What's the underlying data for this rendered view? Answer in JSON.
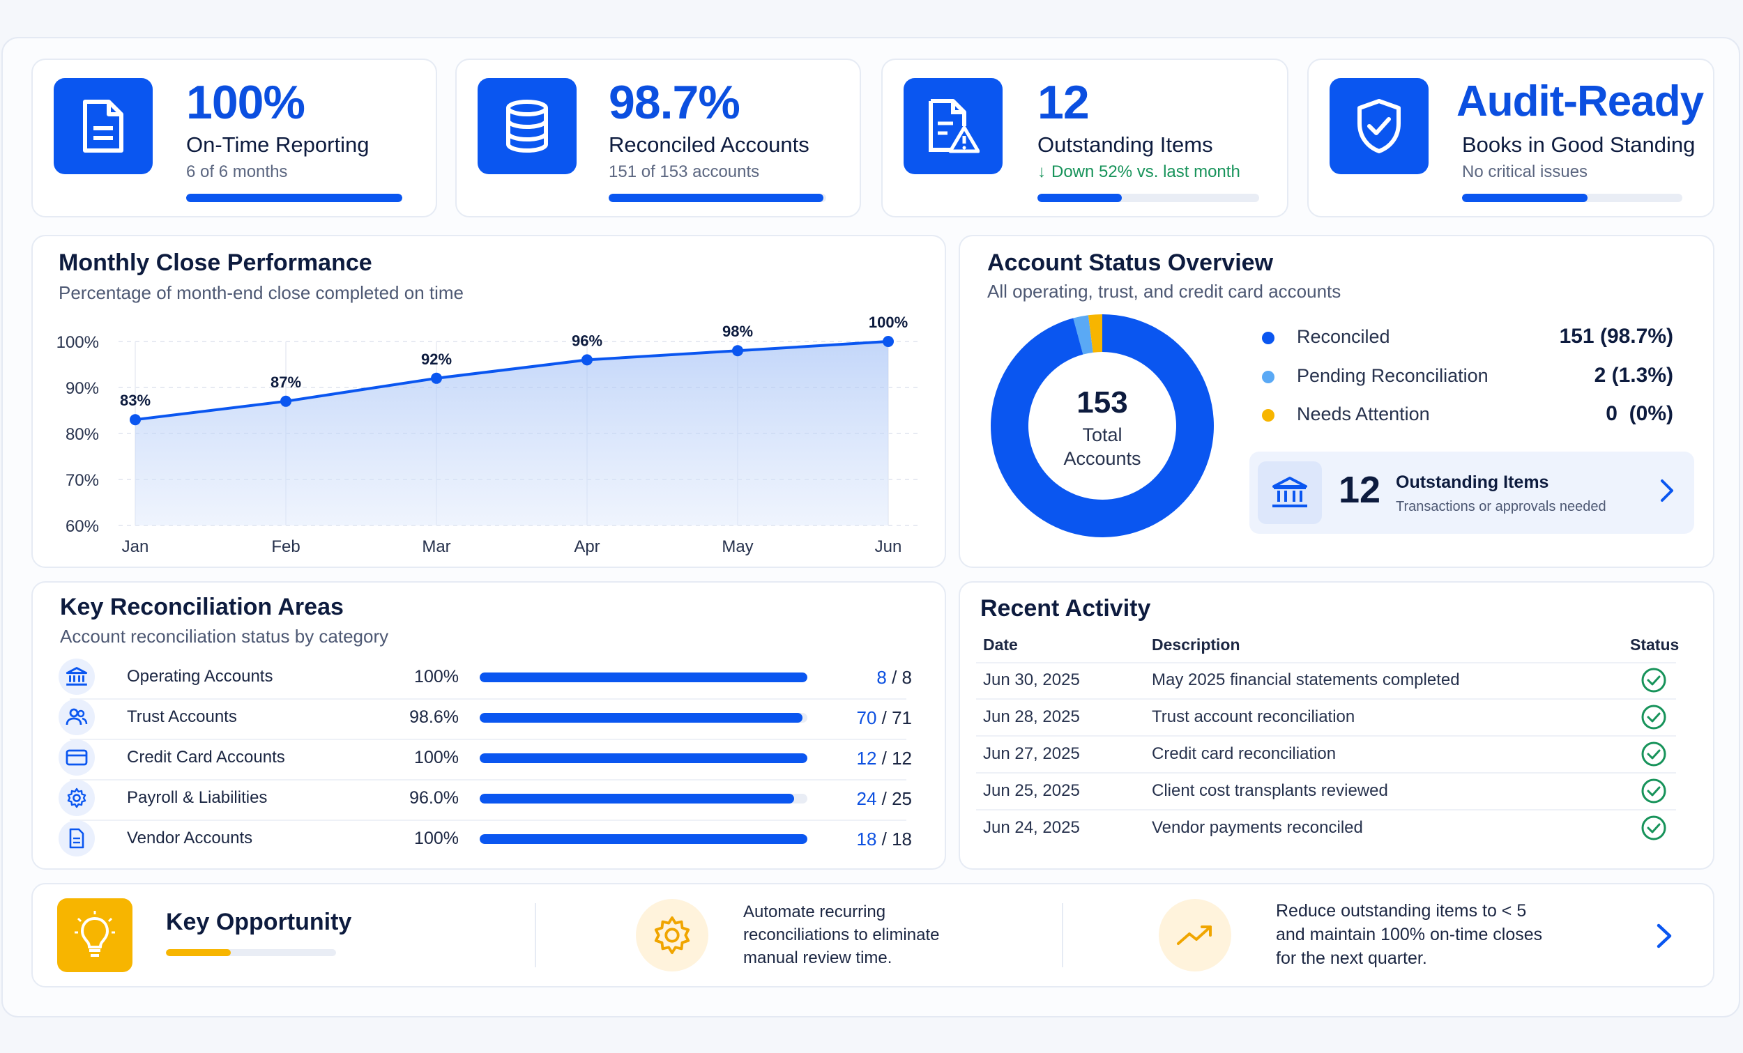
{
  "kpis": [
    {
      "value": "100%",
      "label": "On-Time Reporting",
      "sub": "6 of 6 months",
      "progress": 1.0,
      "icon": "document-icon"
    },
    {
      "value": "98.7%",
      "label": "Reconciled Accounts",
      "sub": "151 of 153 accounts",
      "progress": 0.987,
      "icon": "database-icon"
    },
    {
      "value": "12",
      "label": "Outstanding Items",
      "sub": "Down 52% vs. last month",
      "trend_arrow": "↓",
      "progress": 0.38,
      "icon": "document-warning-icon"
    },
    {
      "value": "Audit-Ready",
      "label": "Books in Good Standing",
      "sub": "No critical issues",
      "progress": 0.57,
      "icon": "shield-check-icon"
    }
  ],
  "monthly_close": {
    "title": "Monthly Close Performance",
    "subtitle": "Percentage of month-end close completed on time"
  },
  "chart_data": {
    "type": "area",
    "categories": [
      "Jan",
      "Feb",
      "Mar",
      "Apr",
      "May",
      "Jun"
    ],
    "values": [
      83,
      87,
      92,
      96,
      98,
      100
    ],
    "value_labels": [
      "83%",
      "87%",
      "92%",
      "96%",
      "98%",
      "100%"
    ],
    "y_ticks": [
      "100%",
      "90%",
      "80%",
      "70%",
      "60%"
    ],
    "ylim": [
      60,
      100
    ],
    "grid": true,
    "color": "#0a56f0"
  },
  "account_status": {
    "title": "Account Status Overview",
    "subtitle": "All operating, trust, and credit card accounts",
    "donut_total": "153",
    "donut_label_1": "Total",
    "donut_label_2": "Accounts",
    "legend": [
      {
        "label": "Reconciled",
        "value": "151 (98.7%)",
        "color": "#0a56f0"
      },
      {
        "label": "Pending Reconciliation",
        "value": "2 (1.3%)",
        "color": "#5aa9f5"
      },
      {
        "label": "Needs Attention",
        "value": "0  (0%)",
        "color": "#f7b500"
      }
    ],
    "donut_slices": [
      151,
      2,
      0
    ],
    "outstanding": {
      "count": "12",
      "title": "Outstanding Items",
      "desc": "Transactions or approvals needed"
    }
  },
  "key_reconciliation": {
    "title": "Key Reconciliation Areas",
    "subtitle": "Account reconciliation status by category",
    "rows": [
      {
        "name": "Operating Accounts",
        "pct": "100%",
        "done": "8",
        "total": "8",
        "progress": 1.0,
        "icon": "bank-icon"
      },
      {
        "name": "Trust Accounts",
        "pct": "98.6%",
        "done": "70",
        "total": "71",
        "progress": 0.986,
        "icon": "users-icon"
      },
      {
        "name": "Credit Card Accounts",
        "pct": "100%",
        "done": "12",
        "total": "12",
        "progress": 1.0,
        "icon": "credit-card-icon"
      },
      {
        "name": "Payroll & Liabilities",
        "pct": "96.0%",
        "done": "24",
        "total": "25",
        "progress": 0.96,
        "icon": "gear-icon"
      },
      {
        "name": "Vendor Accounts",
        "pct": "100%",
        "done": "18",
        "total": "18",
        "progress": 1.0,
        "icon": "document-icon"
      }
    ]
  },
  "recent_activity": {
    "title": "Recent Activity",
    "headers": {
      "date": "Date",
      "description": "Description",
      "status": "Status"
    },
    "rows": [
      {
        "date": "Jun 30, 2025",
        "description": "May 2025 financial statements completed"
      },
      {
        "date": "Jun 28, 2025",
        "description": "Trust account reconciliation"
      },
      {
        "date": "Jun 27, 2025",
        "description": "Credit card reconciliation"
      },
      {
        "date": "Jun 25, 2025",
        "description": "Client cost transplants reviewed"
      },
      {
        "date": "Jun 24, 2025",
        "description": "Vendor payments reconciled"
      }
    ]
  },
  "opportunity": {
    "title": "Key Opportunity",
    "progress": 0.38,
    "item1": {
      "line1": "Automate recurring",
      "line2": "reconciliations to eliminate",
      "line3": "manual review time."
    },
    "item2": {
      "line1": "Reduce outstanding items to < 5",
      "line2": "and maintain 100% on-time closes",
      "line3": "for the next quarter."
    }
  },
  "colors": {
    "accent": "#0a56f0",
    "success": "#17935a",
    "warning": "#f7b500"
  }
}
